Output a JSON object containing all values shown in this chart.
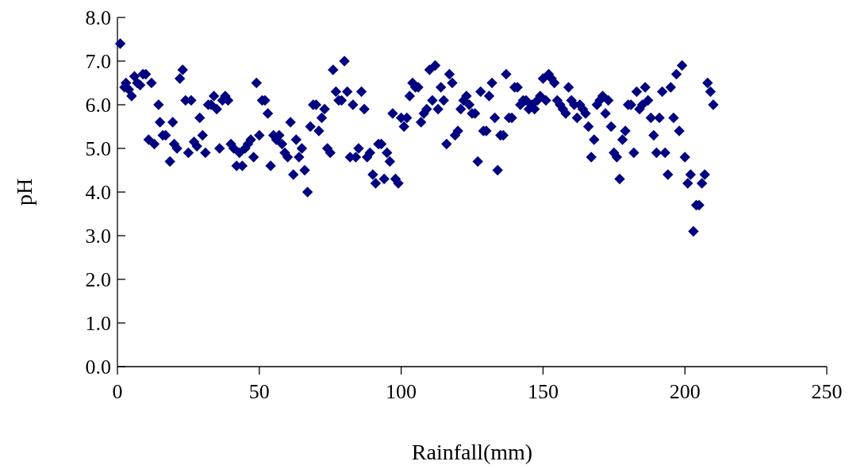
{
  "chart_data": {
    "type": "scatter",
    "xlabel": "Rainfall(mm)",
    "ylabel": "pH",
    "marker": "diamond",
    "grid": false,
    "xlim": [
      0,
      250
    ],
    "xticks": [
      0,
      50,
      100,
      150,
      200,
      250
    ],
    "ylim": [
      0,
      8
    ],
    "yticks": [
      {
        "value": 0,
        "label": "0.0"
      },
      {
        "value": 1,
        "label": "1.0"
      },
      {
        "value": 2,
        "label": "2.0"
      },
      {
        "value": 3,
        "label": "3.0"
      },
      {
        "value": 4,
        "label": "4.0"
      },
      {
        "value": 5,
        "label": "5.0"
      },
      {
        "value": 6,
        "label": "6.0"
      },
      {
        "value": 7,
        "label": "7.0"
      },
      {
        "value": 8,
        "label": "8.0"
      }
    ],
    "series": [
      {
        "color": "#000080",
        "x": [
          1,
          2.5,
          3,
          4,
          5,
          6,
          7,
          8,
          9,
          10,
          11,
          12,
          13,
          14.5,
          15,
          16,
          17,
          18.5,
          19.5,
          20,
          21,
          22,
          23,
          24,
          25,
          26,
          27,
          28,
          29,
          30,
          31,
          32,
          33,
          34,
          35,
          36,
          37,
          38,
          39,
          40,
          41,
          42,
          43,
          44,
          45,
          46,
          47,
          48,
          49,
          50,
          51,
          52,
          53,
          54,
          55,
          56,
          57,
          58,
          59,
          60,
          61,
          62,
          63,
          64,
          65,
          66,
          67,
          68,
          69,
          70,
          71,
          72,
          73,
          74,
          75,
          76,
          77,
          78,
          79,
          80,
          81,
          82,
          83,
          84,
          85,
          86,
          87,
          88,
          89,
          90,
          91,
          92,
          93,
          94,
          95,
          96,
          97,
          98,
          99,
          100,
          101,
          102,
          103,
          104,
          105,
          106,
          107,
          108,
          109,
          110,
          111,
          112,
          113,
          114,
          115,
          116,
          117,
          118,
          119,
          120,
          121,
          122,
          123,
          124,
          125,
          126,
          127,
          128,
          129,
          130,
          131,
          132,
          133,
          134,
          135,
          136,
          137,
          138,
          139,
          140,
          141,
          142,
          143,
          144,
          145,
          146,
          147,
          148,
          149,
          150,
          151,
          152,
          153,
          154,
          155,
          156,
          157,
          158,
          159,
          160,
          161,
          162,
          163,
          164,
          165,
          166,
          167,
          168,
          169,
          170,
          171,
          172,
          173,
          174,
          175,
          176,
          177,
          178,
          179,
          180,
          181,
          182,
          183,
          184,
          185,
          186,
          187,
          188,
          189,
          190,
          191,
          192,
          193,
          194,
          195,
          196,
          197,
          198,
          199,
          200,
          201,
          202,
          203,
          204,
          205,
          206,
          207,
          208,
          209,
          210
        ],
        "values": [
          7.4,
          6.4,
          6.5,
          6.35,
          6.2,
          6.65,
          6.5,
          6.45,
          6.7,
          6.7,
          5.2,
          6.5,
          5.1,
          6.0,
          5.6,
          5.3,
          5.3,
          4.7,
          5.6,
          5.1,
          5.0,
          6.6,
          6.8,
          6.1,
          4.9,
          6.1,
          5.15,
          5.05,
          5.7,
          5.3,
          4.9,
          6.0,
          6.0,
          6.2,
          5.9,
          5.0,
          6.1,
          6.2,
          6.1,
          5.1,
          5.0,
          4.6,
          4.9,
          4.6,
          5.0,
          5.1,
          5.2,
          4.8,
          6.5,
          5.3,
          6.1,
          6.1,
          5.8,
          4.6,
          5.3,
          5.2,
          5.3,
          5.1,
          4.9,
          4.8,
          5.6,
          4.4,
          5.2,
          4.8,
          5.0,
          4.5,
          4.0,
          5.5,
          6.0,
          6.0,
          5.4,
          5.7,
          5.9,
          5.0,
          4.9,
          6.8,
          6.3,
          6.1,
          6.1,
          7.0,
          6.3,
          4.8,
          6.0,
          4.8,
          5.0,
          6.3,
          5.9,
          4.8,
          4.9,
          4.4,
          4.2,
          5.1,
          5.1,
          4.3,
          4.9,
          4.7,
          5.8,
          4.3,
          4.2,
          5.7,
          5.5,
          5.7,
          6.2,
          6.5,
          6.4,
          6.4,
          5.6,
          5.8,
          5.9,
          6.8,
          6.1,
          6.9,
          5.9,
          6.4,
          6.1,
          5.1,
          6.7,
          6.5,
          5.3,
          5.4,
          5.9,
          6.1,
          6.2,
          6.0,
          5.8,
          5.8,
          4.7,
          6.3,
          5.4,
          5.4,
          6.2,
          6.5,
          5.7,
          4.5,
          5.3,
          5.3,
          6.7,
          5.7,
          5.7,
          6.4,
          6.4,
          6.0,
          6.1,
          6.1,
          5.9,
          6.0,
          5.9,
          6.1,
          6.2,
          6.6,
          6.1,
          6.7,
          6.6,
          6.5,
          6.1,
          6.0,
          5.9,
          5.8,
          6.4,
          6.1,
          6.0,
          5.7,
          6.0,
          5.9,
          5.8,
          5.5,
          4.8,
          5.2,
          6.0,
          6.1,
          6.2,
          5.8,
          6.1,
          5.5,
          4.9,
          4.8,
          4.3,
          5.2,
          5.4,
          6.0,
          6.0,
          4.9,
          6.3,
          5.9,
          6.0,
          6.4,
          6.1,
          5.7,
          5.3,
          4.9,
          5.7,
          6.3,
          4.9,
          4.4,
          6.4,
          5.7,
          6.7,
          5.4,
          6.9,
          4.8,
          4.2,
          4.4,
          3.1,
          3.7,
          3.7,
          4.2,
          4.4,
          6.5,
          6.3,
          6.0
        ]
      }
    ]
  }
}
